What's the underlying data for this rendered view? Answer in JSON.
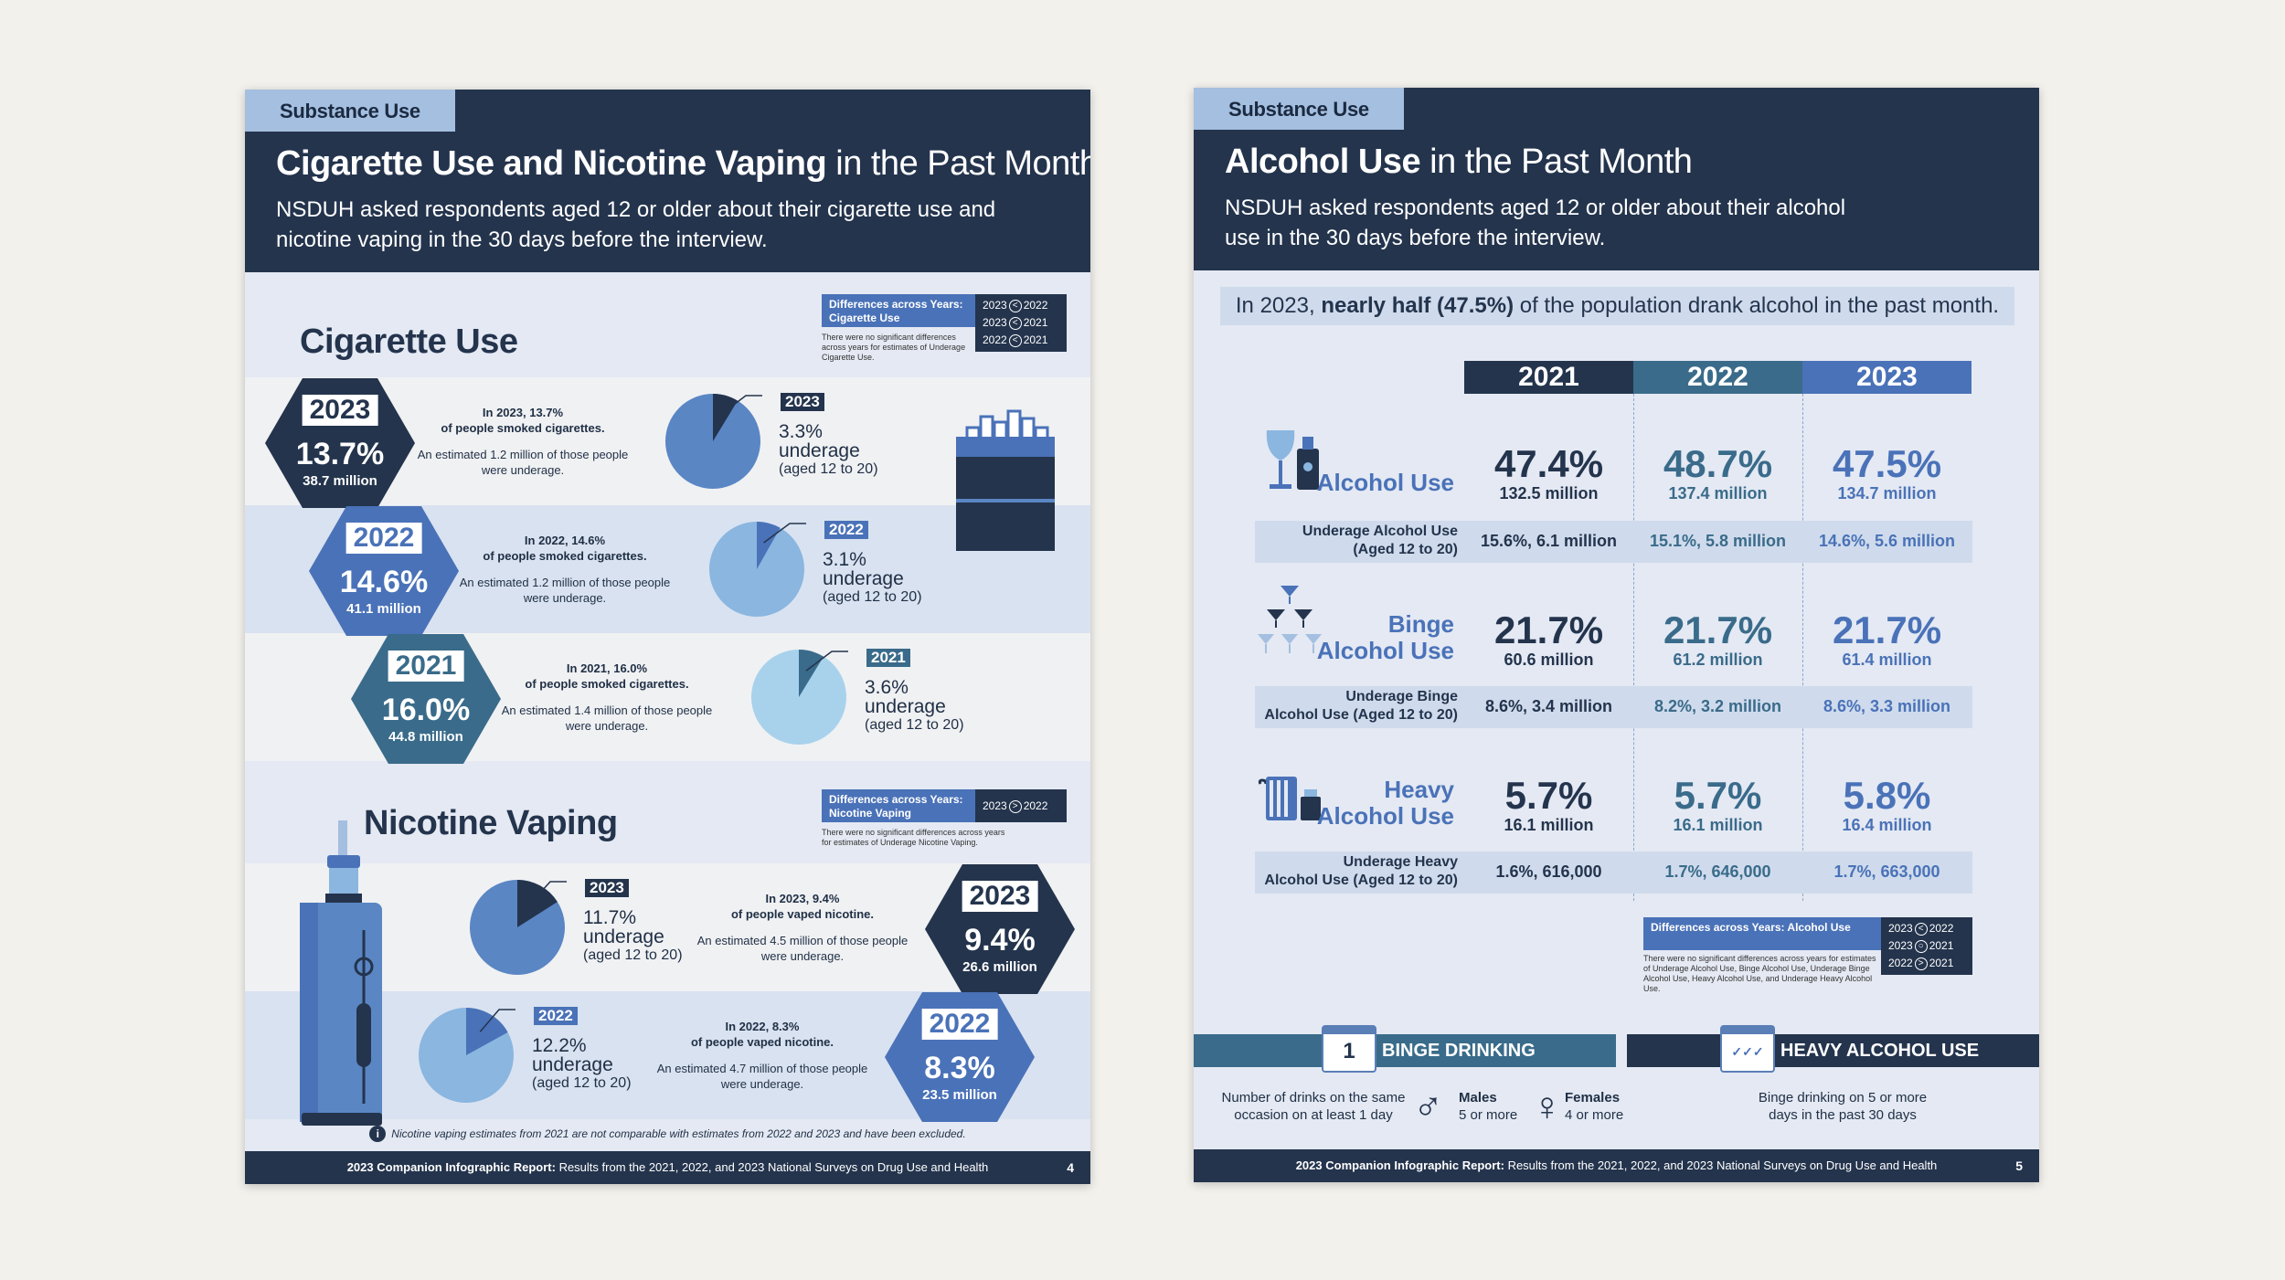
{
  "page4": {
    "tab": "Substance Use",
    "title_bold": "Cigarette Use and Nicotine Vaping",
    "title_rest": " in the Past Month",
    "description": "NSDUH asked respondents aged 12 or older about their cigarette use and nicotine vaping in the 30 days before the interview.",
    "cigarette": {
      "heading": "Cigarette Use",
      "diff": {
        "label": "Differences across Years: Cigarette Use",
        "rows": [
          {
            "a": "2023",
            "cmp": "<",
            "b": "2022"
          },
          {
            "a": "2023",
            "cmp": "<",
            "b": "2021"
          },
          {
            "a": "2022",
            "cmp": "<",
            "b": "2021"
          }
        ],
        "note": "There were no significant differences across years for estimates of Underage Cigarette Use."
      },
      "rows": [
        {
          "year": "2023",
          "pct": "13.7%",
          "million": "38.7 million",
          "line1": "In 2023, 13.7%",
          "line2": "of people smoked cigarettes.",
          "line3": "An estimated 1.2 million of those people were underage.",
          "pie_year": "2023",
          "pie_pct": "3.3%",
          "pie_word": "underage",
          "pie_age": "(aged 12 to 20)",
          "pie_fraction": 0.087,
          "color": "#24344d"
        },
        {
          "year": "2022",
          "pct": "14.6%",
          "million": "41.1 million",
          "line1": "In 2022, 14.6%",
          "line2": "of people smoked cigarettes.",
          "line3": "An estimated 1.2 million of those people were underage.",
          "pie_year": "2022",
          "pie_pct": "3.1%",
          "pie_word": "underage",
          "pie_age": "(aged 12 to 20)",
          "pie_fraction": 0.082,
          "color": "#4a72b8"
        },
        {
          "year": "2021",
          "pct": "16.0%",
          "million": "44.8 million",
          "line1": "In 2021, 16.0%",
          "line2": "of people smoked cigarettes.",
          "line3": "An estimated 1.4 million of those people were underage.",
          "pie_year": "2021",
          "pie_pct": "3.6%",
          "pie_word": "underage",
          "pie_age": "(aged 12 to 20)",
          "pie_fraction": 0.087,
          "color": "#3a6b8a"
        }
      ]
    },
    "vaping": {
      "heading": "Nicotine Vaping",
      "diff": {
        "label": "Differences across Years: Nicotine Vaping",
        "rows": [
          {
            "a": "2023",
            "cmp": ">",
            "b": "2022"
          }
        ],
        "note": "There were no significant differences across years for estimates of Underage Nicotine Vaping."
      },
      "rows": [
        {
          "year": "2023",
          "pct": "9.4%",
          "million": "26.6 million",
          "line1": "In 2023, 9.4%",
          "line2": "of people vaped nicotine.",
          "line3": "An estimated 4.5 million of those people were underage.",
          "pie_year": "2023",
          "pie_pct": "11.7%",
          "pie_word": "underage",
          "pie_age": "(aged 12 to 20)",
          "pie_fraction": 0.16,
          "color": "#24344d"
        },
        {
          "year": "2022",
          "pct": "8.3%",
          "million": "23.5 million",
          "line1": "In 2022, 8.3%",
          "line2": "of people vaped nicotine.",
          "line3": "An estimated 4.7 million of those people were underage.",
          "pie_year": "2022",
          "pie_pct": "12.2%",
          "pie_word": "underage",
          "pie_age": "(aged 12 to 20)",
          "pie_fraction": 0.17,
          "color": "#4a72b8"
        }
      ],
      "note": "Nicotine vaping estimates from 2021 are not comparable with estimates from 2022 and 2023 and have been excluded."
    },
    "footer_bold": "2023 Companion Infographic Report:",
    "footer_rest": " Results from the 2021, 2022, and 2023 National Surveys on Drug Use and Health",
    "page_number": "4"
  },
  "page5": {
    "tab": "Substance Use",
    "title_bold": "Alcohol Use",
    "title_rest": " in the Past Month",
    "description": "NSDUH asked respondents aged 12 or older about their alcohol use in the 30 days before the interview.",
    "banner_pre": "In 2023, ",
    "banner_bold": "nearly half (47.5%)",
    "banner_post": " of the population drank alcohol in the past month.",
    "years": [
      "2021",
      "2022",
      "2023"
    ],
    "rows": [
      {
        "label1": "",
        "label2": "Alcohol Use",
        "values": [
          {
            "pct": "47.4%",
            "mil": "132.5 million"
          },
          {
            "pct": "48.7%",
            "mil": "137.4 million"
          },
          {
            "pct": "47.5%",
            "mil": "134.7 million"
          }
        ],
        "sub_label1": "Underage Alcohol Use",
        "sub_label2": "(Aged 12 to 20)",
        "sub_values": [
          "15.6%, 6.1 million",
          "15.1%, 5.8 million",
          "14.6%, 5.6 million"
        ]
      },
      {
        "label1": "Binge",
        "label2": "Alcohol Use",
        "values": [
          {
            "pct": "21.7%",
            "mil": "60.6 million"
          },
          {
            "pct": "21.7%",
            "mil": "61.2 million"
          },
          {
            "pct": "21.7%",
            "mil": "61.4 million"
          }
        ],
        "sub_label1": "Underage Binge",
        "sub_label2": "Alcohol Use (Aged 12 to 20)",
        "sub_values": [
          "8.6%, 3.4 million",
          "8.2%, 3.2 million",
          "8.6%, 3.3 million"
        ]
      },
      {
        "label1": "Heavy",
        "label2": "Alcohol Use",
        "values": [
          {
            "pct": "5.7%",
            "mil": "16.1 million"
          },
          {
            "pct": "5.7%",
            "mil": "16.1 million"
          },
          {
            "pct": "5.8%",
            "mil": "16.4 million"
          }
        ],
        "sub_label1": "Underage Heavy",
        "sub_label2": "Alcohol Use (Aged 12 to 20)",
        "sub_values": [
          "1.6%, 616,000",
          "1.7%, 646,000",
          "1.7%, 663,000"
        ]
      }
    ],
    "diff": {
      "label": "Differences across Years: Alcohol Use",
      "rows": [
        {
          "a": "2023",
          "cmp": "<",
          "b": "2022"
        },
        {
          "a": "2023",
          "cmp": "○",
          "b": "2021"
        },
        {
          "a": "2022",
          "cmp": ">",
          "b": "2021"
        }
      ],
      "note": "There were no significant differences across years for estimates of Underage Alcohol Use, Binge Alcohol Use, Underage Binge Alcohol Use, Heavy Alcohol Use, and Underage Heavy Alcohol Use."
    },
    "binge": {
      "calendar": "1",
      "heading": "BINGE DRINKING",
      "desc": "Number of drinks on the same occasion on at least 1 day",
      "males_label": "Males",
      "males_value": "5 or more",
      "females_label": "Females",
      "females_value": "4 or more"
    },
    "heavy": {
      "heading": "HEAVY ALCOHOL USE",
      "desc": "Binge drinking on 5 or more days in the past 30 days"
    },
    "footer_bold": "2023 Companion Infographic Report:",
    "footer_rest": " Results from the 2021, 2022, and 2023 National Surveys on Drug Use and Health",
    "page_number": "5"
  },
  "colors": {
    "navy": "#24344d",
    "blue": "#4a72b8",
    "teal": "#3a6b8a",
    "light": "#e4e9f3",
    "pie_main": "#5a86c4"
  }
}
